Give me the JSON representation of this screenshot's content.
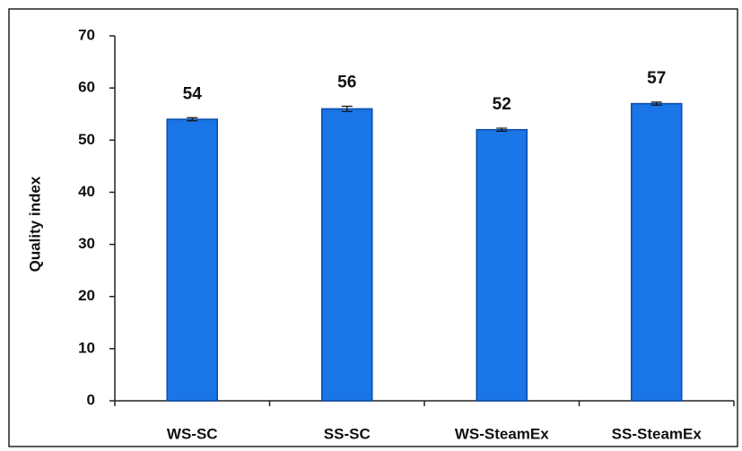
{
  "chart_data": {
    "type": "bar",
    "y_label": "Quality index",
    "categories": [
      "WS-SC",
      "SS-SC",
      "WS-SteamEx",
      "SS-SteamEx"
    ],
    "values": [
      54,
      56,
      52,
      57
    ],
    "errors": [
      0.3,
      0.5,
      0.3,
      0.3
    ],
    "color": "#1a75e6",
    "ylim": [
      0,
      70
    ],
    "yticks": [
      0,
      10,
      20,
      30,
      40,
      50,
      60,
      70
    ],
    "grid": false
  }
}
